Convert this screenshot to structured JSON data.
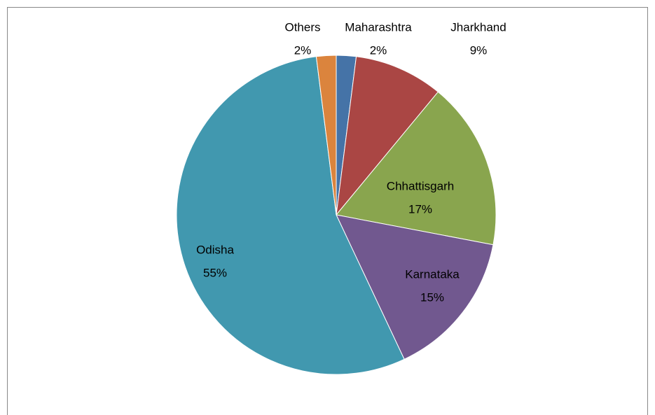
{
  "chart_data": {
    "type": "pie",
    "categories": [
      "Maharashtra",
      "Jharkhand",
      "Chhattisgarh",
      "Karnataka",
      "Odisha",
      "Others"
    ],
    "values": [
      2,
      9,
      17,
      15,
      55,
      2
    ],
    "value_labels": [
      "2%",
      "9%",
      "17%",
      "15%",
      "55%",
      "2%"
    ],
    "colors": [
      "#4573a7",
      "#aa4644",
      "#89a54e",
      "#71588f",
      "#4198af",
      "#db843d"
    ]
  }
}
